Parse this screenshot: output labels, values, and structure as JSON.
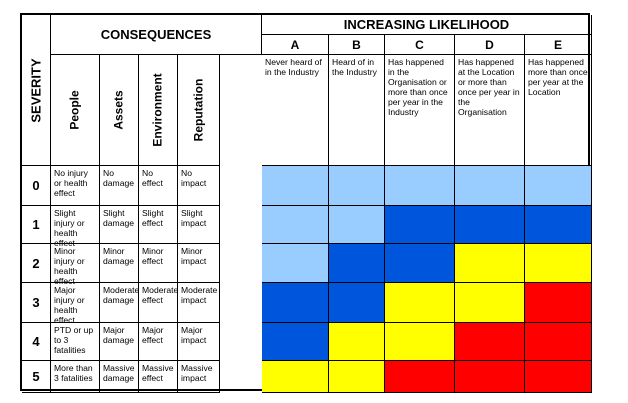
{
  "headers": {
    "severity": "SEVERITY",
    "consequences": "CONSEQUENCES",
    "likelihood": "INCREASING LIKELIHOOD"
  },
  "consequence_columns": [
    "People",
    "Assets",
    "Environment",
    "Reputation"
  ],
  "likelihood_columns": [
    {
      "letter": "A",
      "desc": "Never heard of in the Industry"
    },
    {
      "letter": "B",
      "desc": "Heard of in the Industry"
    },
    {
      "letter": "C",
      "desc": "Has happened in the Organisation or more than once per year in the Industry"
    },
    {
      "letter": "D",
      "desc": "Has happened at the Location or more than once per year in the Organisation"
    },
    {
      "letter": "E",
      "desc": "Has happened more than once per year at the Location"
    }
  ],
  "rows": [
    {
      "level": "0",
      "people": "No injury or health effect",
      "assets": "No damage",
      "environment": "No  effect",
      "reputation": "No impact",
      "risk": [
        "lightblue",
        "lightblue",
        "lightblue",
        "lightblue",
        "lightblue"
      ]
    },
    {
      "level": "1",
      "people": "Slight injury or health effect",
      "assets": "Slight damage",
      "environment": "Slight effect",
      "reputation": "Slight impact",
      "risk": [
        "lightblue",
        "lightblue",
        "blue",
        "blue",
        "blue"
      ]
    },
    {
      "level": "2",
      "people": "Minor injury or health effect",
      "assets": "Minor damage",
      "environment": "Minor effect",
      "reputation": "Minor impact",
      "risk": [
        "lightblue",
        "blue",
        "blue",
        "yellow",
        "yellow"
      ]
    },
    {
      "level": "3",
      "people": "Major injury or health effect",
      "assets": "Moderate damage",
      "environment": "Moderate effect",
      "reputation": "Moderate impact",
      "risk": [
        "blue",
        "blue",
        "yellow",
        "yellow",
        "red"
      ]
    },
    {
      "level": "4",
      "people": "PTD or up to 3 fatalities",
      "assets": "Major damage",
      "environment": "Major effect",
      "reputation": "Major impact",
      "risk": [
        "blue",
        "yellow",
        "yellow",
        "red",
        "red"
      ]
    },
    {
      "level": "5",
      "people": "More than 3 fatalities",
      "assets": "Massive damage",
      "environment": "Massive effect",
      "reputation": "Massive impact",
      "risk": [
        "yellow",
        "yellow",
        "red",
        "red",
        "red"
      ]
    }
  ],
  "colors": {
    "lightblue": "#99ccff",
    "blue": "#0055dd",
    "yellow": "#ffff00",
    "red": "#ff0000"
  }
}
